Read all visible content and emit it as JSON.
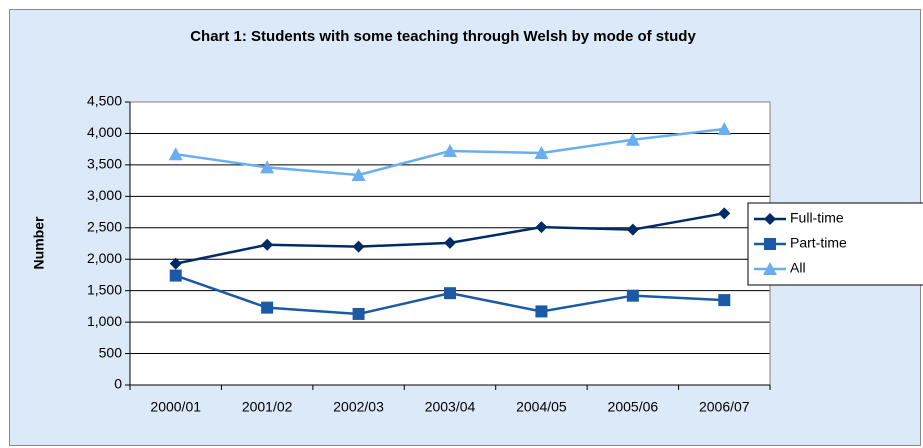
{
  "chart_data": {
    "type": "line",
    "title": "Chart 1: Students with some teaching through Welsh by mode of study",
    "y_label": "Number",
    "categories": [
      "2000/01",
      "2001/02",
      "2002/03",
      "2003/04",
      "2004/05",
      "2005/06",
      "2006/07"
    ],
    "series": [
      {
        "name": "Full-time",
        "color": "#002b66",
        "marker": "diamond",
        "values": [
          1930,
          2230,
          2200,
          2260,
          2510,
          2470,
          2730
        ]
      },
      {
        "name": "Part-time",
        "color": "#1c5aa6",
        "marker": "square",
        "values": [
          1740,
          1230,
          1130,
          1460,
          1170,
          1420,
          1350
        ]
      },
      {
        "name": "All",
        "color": "#6aaef0",
        "marker": "triangle",
        "values": [
          3670,
          3460,
          3340,
          3720,
          3690,
          3900,
          4070
        ]
      }
    ],
    "ylim": [
      0,
      4500
    ],
    "yticks": [
      0,
      500,
      {
        "value": 1000,
        "label": "1,000"
      },
      {
        "value": 1500,
        "label": "1,500"
      },
      {
        "value": 2000,
        "label": "2,000"
      },
      {
        "value": 2500,
        "label": "2,500"
      },
      {
        "value": 3000,
        "label": "3,000"
      },
      {
        "value": 3500,
        "label": "3,500"
      },
      {
        "value": 4000,
        "label": "4,000"
      },
      {
        "value": 4500,
        "label": "4,500"
      }
    ],
    "grid": true,
    "legend": "right"
  }
}
